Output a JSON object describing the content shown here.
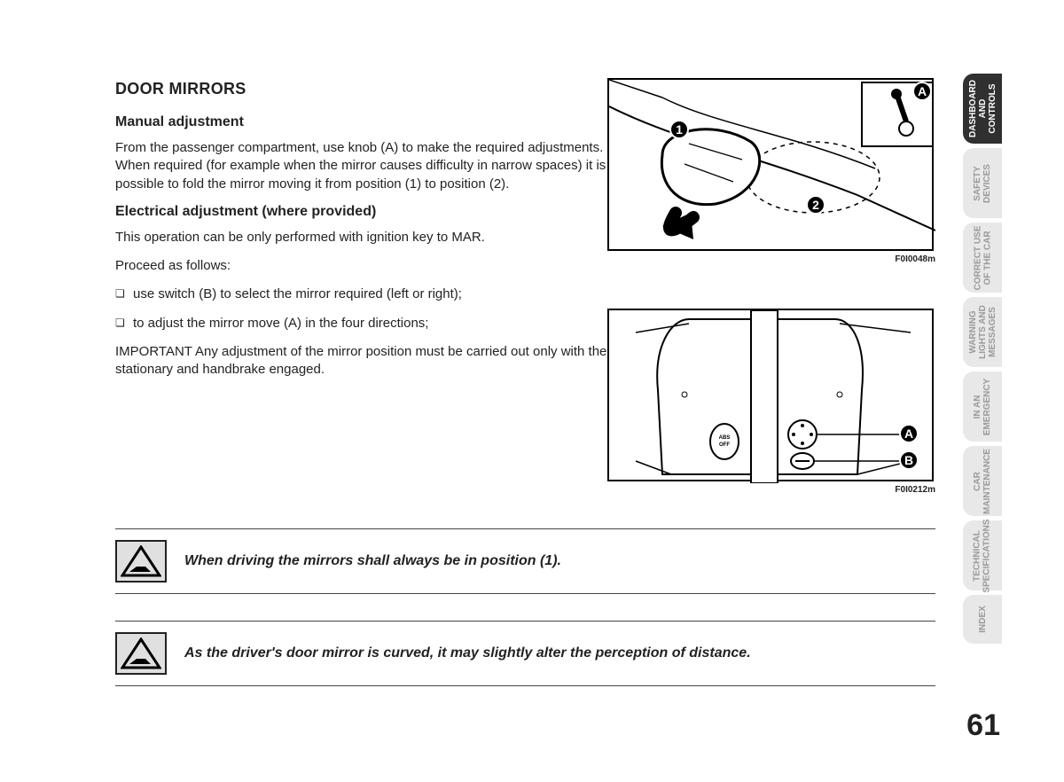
{
  "heading": "DOOR MIRRORS",
  "section1": {
    "title": "Manual adjustment",
    "p1": "From the passenger compartment, use knob (A) to make the required adjustments. When required (for example when the mirror causes difficulty in narrow spaces) it is possible to fold the mirror moving it from position (1) to position (2)."
  },
  "section2": {
    "title": "Electrical adjustment (where provided)",
    "p1": "This operation can be only performed with ignition key to MAR.",
    "p2": "Proceed as follows:",
    "b1": "use switch (B) to select the mirror required (left or right);",
    "b2": "to adjust the mirror move (A) in the four directions;",
    "p3": "IMPORTANT Any adjustment of the mirror position must be carried out only with the car stationary and handbrake engaged."
  },
  "warnings": {
    "w1": "When driving the mirrors shall always be in position (1).",
    "w2": "As the driver's door mirror is curved, it may slightly alter the perception of distance."
  },
  "figures": {
    "f1": {
      "caption": "F0I0048m",
      "callouts": {
        "a": "A",
        "one": "1",
        "two": "2"
      }
    },
    "f2": {
      "caption": "F0I0212m",
      "callouts": {
        "a": "A",
        "b": "B"
      }
    }
  },
  "tabs": {
    "t1": "DASHBOARD\nAND\nCONTROLS",
    "t2": "SAFETY\nDEVICES",
    "t3": "CORRECT USE\nOF THE CAR",
    "t4": "WARNING\nLIGHTS AND\nMESSAGES",
    "t5": "IN AN\nEMERGENCY",
    "t6": "CAR\nMAINTENANCE",
    "t7": "TECHNICAL\nSPECIFICATIONS",
    "t8": "INDEX"
  },
  "page_number": "61"
}
